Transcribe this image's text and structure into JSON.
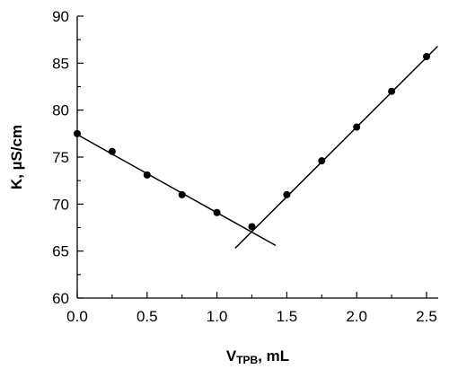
{
  "chart_data": {
    "type": "scatter",
    "xlabel": {
      "main": "V",
      "sub": "TPB",
      "rest": ", mL"
    },
    "ylabel": "K, µS/cm",
    "xlim": [
      0,
      2.5
    ],
    "ylim": [
      60,
      90
    ],
    "xticks": [
      "0.0",
      "0.5",
      "1.0",
      "1.5",
      "2.0",
      "2.5"
    ],
    "yticks": [
      "60",
      "65",
      "70",
      "75",
      "80",
      "85",
      "90"
    ],
    "grid": false,
    "legend": "none",
    "points": [
      {
        "x": 0.0,
        "y": 77.5
      },
      {
        "x": 0.25,
        "y": 75.6
      },
      {
        "x": 0.5,
        "y": 73.1
      },
      {
        "x": 0.75,
        "y": 71.0
      },
      {
        "x": 1.0,
        "y": 69.1
      },
      {
        "x": 1.25,
        "y": 67.6
      },
      {
        "x": 1.5,
        "y": 71.0
      },
      {
        "x": 1.75,
        "y": 74.6
      },
      {
        "x": 2.0,
        "y": 78.2
      },
      {
        "x": 2.25,
        "y": 82.0
      },
      {
        "x": 2.5,
        "y": 85.7
      }
    ],
    "fit_lines": [
      {
        "from": {
          "x": 0.0,
          "y": 77.4
        },
        "to": {
          "x": 1.42,
          "y": 65.6
        }
      },
      {
        "from": {
          "x": 1.13,
          "y": 65.3
        },
        "to": {
          "x": 2.58,
          "y": 86.8
        }
      }
    ],
    "colors": {
      "marks": "#000000",
      "background": "#ffffff"
    }
  }
}
